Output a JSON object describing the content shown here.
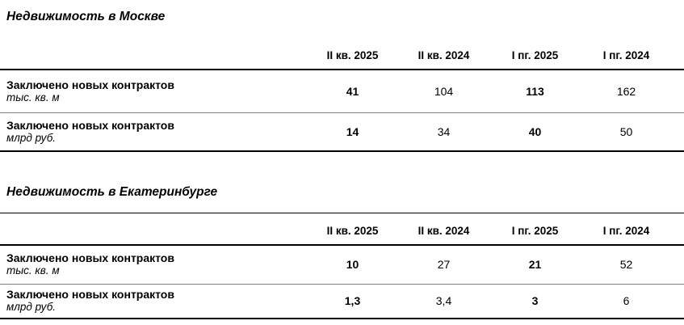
{
  "sections": [
    {
      "title": "Недвижимость в Москве",
      "table": {
        "columns": [
          "II кв. 2025",
          "II кв. 2024",
          "I пг. 2025",
          "I пг. 2024"
        ],
        "rows": [
          {
            "label": "Заключено новых контрактов",
            "unit": "тыс. кв. м",
            "values": [
              "41",
              "104",
              "113",
              "162"
            ]
          },
          {
            "label": "Заключено новых контрактов",
            "unit": "млрд руб.",
            "values": [
              "14",
              "34",
              "40",
              "50"
            ]
          }
        ]
      }
    },
    {
      "title": "Недвижимость в Екатеринбурге",
      "table": {
        "columns": [
          "II кв. 2025",
          "II кв. 2024",
          "I пг. 2025",
          "I пг. 2024"
        ],
        "rows": [
          {
            "label": "Заключено новых контрактов",
            "unit": "тыс. кв. м",
            "values": [
              "10",
              "27",
              "21",
              "52"
            ]
          },
          {
            "label": "Заключено новых контрактов",
            "unit": "млрд руб.",
            "values": [
              "1,3",
              "3,4",
              "3",
              "6"
            ]
          }
        ]
      }
    }
  ],
  "colors": {
    "text": "#000000",
    "rule_black": "#000000",
    "rule_gray": "#7f7f7f",
    "background": "#ffffff"
  }
}
